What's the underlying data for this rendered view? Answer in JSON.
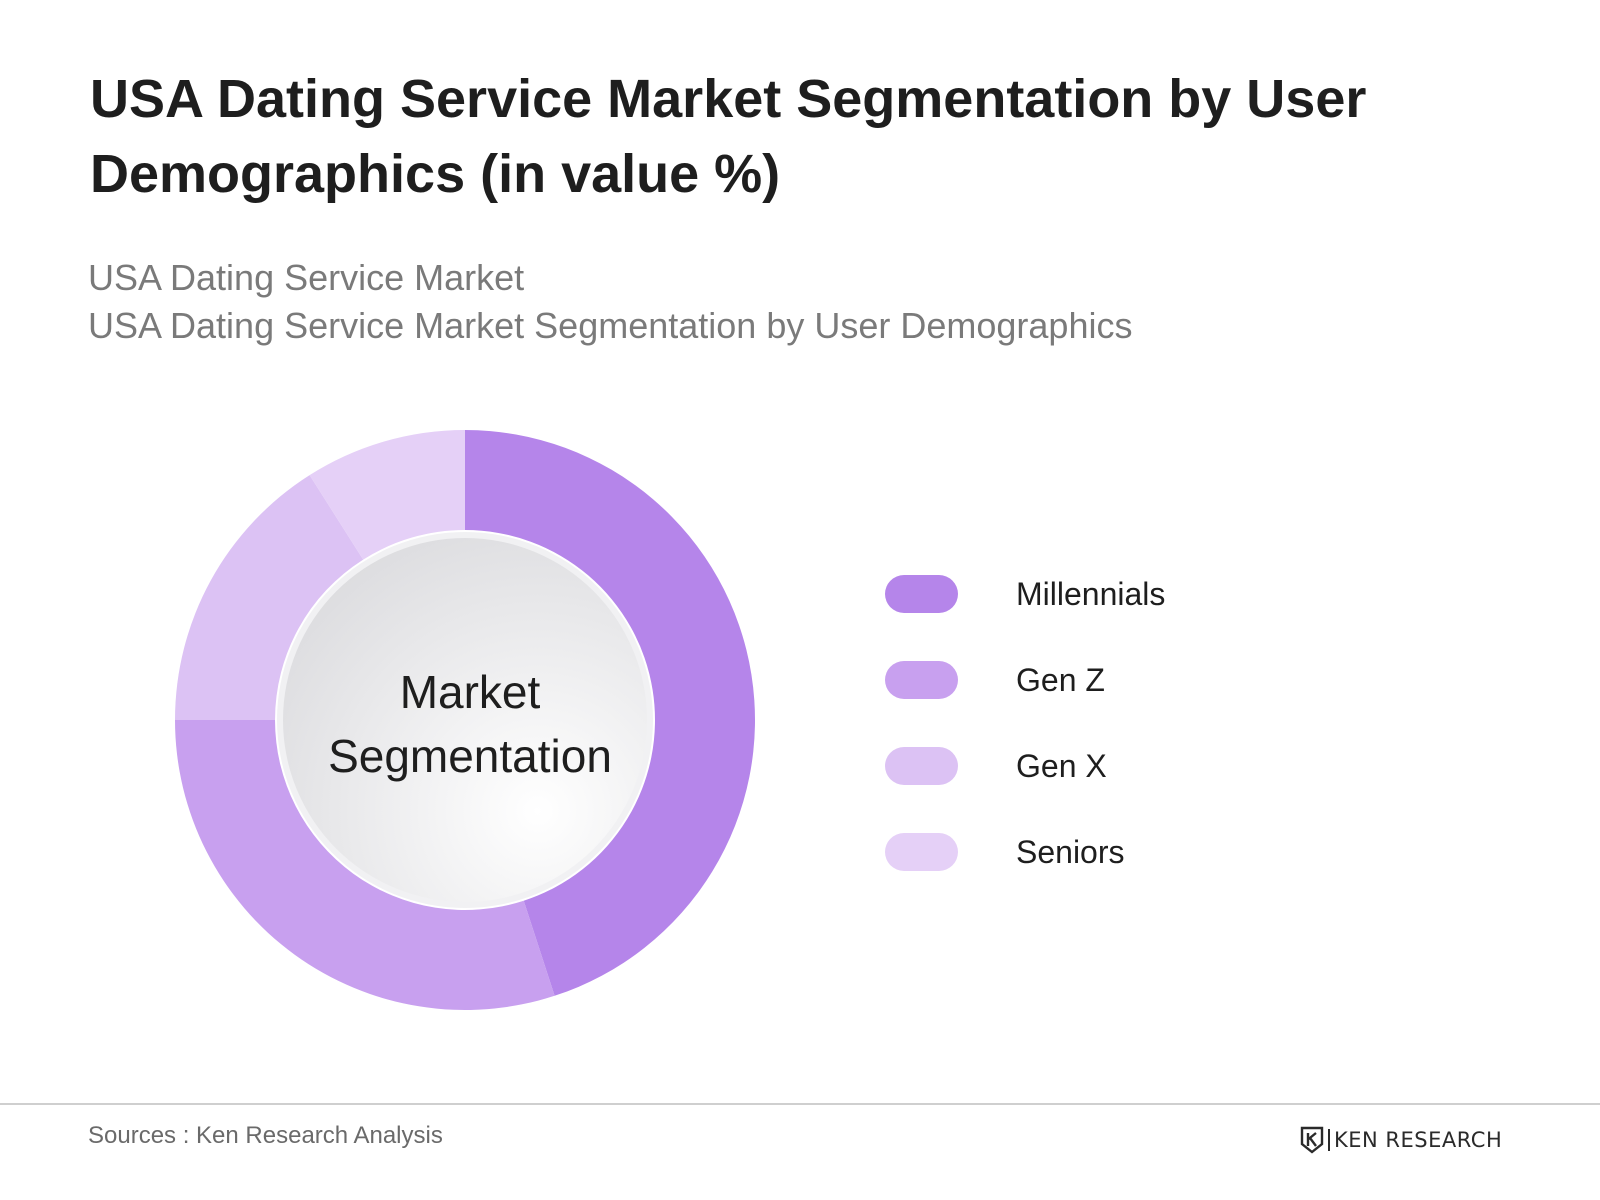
{
  "header": {
    "title": "USA Dating Service Market Segmentation by User Demographics (in value %)",
    "subtitle_1": "USA Dating Service Market",
    "subtitle_2": "USA Dating Service Market Segmentation by User Demographics"
  },
  "chart_data": {
    "type": "pie",
    "variant": "donut",
    "center_label_line1": "Market",
    "center_label_line2": "Segmentation",
    "legend_position": "right",
    "categories": [
      "Millennials",
      "Gen Z",
      "Gen X",
      "Seniors"
    ],
    "values": [
      45,
      30,
      16,
      9
    ],
    "unit": "%",
    "colors": [
      "#b585ea",
      "#c8a0ef",
      "#dcc2f4",
      "#e5d0f7"
    ]
  },
  "footer": {
    "sources": "Sources : Ken Research Analysis",
    "logo_text": "KEN RESEARCH"
  }
}
